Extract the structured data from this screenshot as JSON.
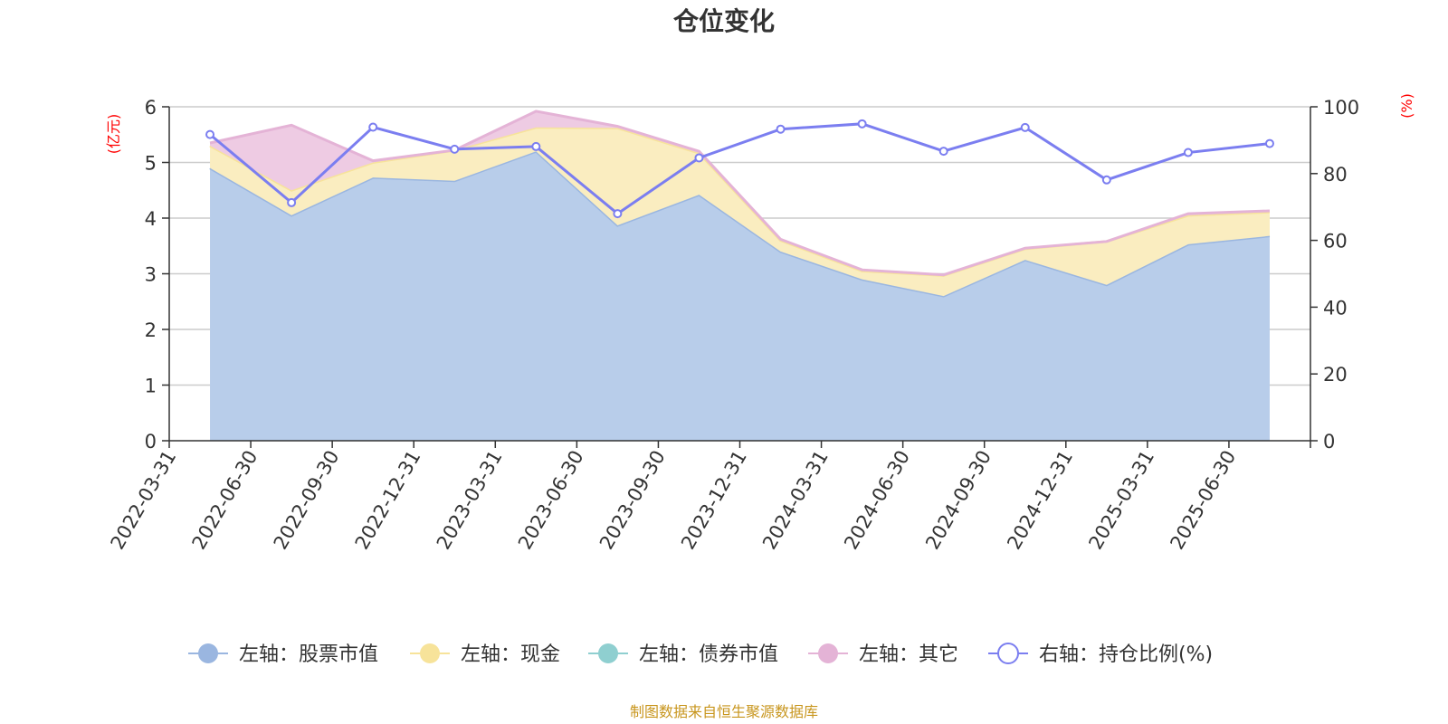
{
  "chart_data": {
    "type": "area",
    "title": "仓位变化",
    "left_axis": {
      "unit": "(亿元)",
      "ylim": [
        0,
        6
      ],
      "ticks": [
        "0",
        "1",
        "2",
        "3",
        "4",
        "5",
        "6"
      ]
    },
    "right_axis": {
      "unit": "(%)",
      "ylim": [
        0,
        100
      ],
      "ticks": [
        "0",
        "20",
        "40",
        "60",
        "80",
        "100"
      ]
    },
    "categories": [
      "2022-03-31",
      "2022-06-30",
      "2022-09-30",
      "2022-12-31",
      "2023-03-31",
      "2023-06-30",
      "2023-09-30",
      "2023-12-31",
      "2024-03-31",
      "2024-06-30",
      "2024-09-30",
      "2024-12-31",
      "2025-03-31",
      "2025-06-30"
    ],
    "series": [
      {
        "name": "左轴：股票市值",
        "axis": "left",
        "kind": "stacked-area",
        "color": "#9ab6e0",
        "fill": "#b8cdea",
        "values": [
          4.9,
          4.05,
          4.73,
          4.67,
          5.2,
          3.87,
          4.42,
          3.4,
          2.9,
          2.6,
          3.25,
          2.8,
          3.53,
          3.68
        ]
      },
      {
        "name": "左轴：现金",
        "axis": "left",
        "kind": "stacked-area",
        "color": "#f7e39a",
        "fill": "#faedc0",
        "values": [
          0.4,
          0.45,
          0.27,
          0.55,
          0.43,
          1.75,
          0.75,
          0.2,
          0.15,
          0.37,
          0.2,
          0.78,
          0.52,
          0.43
        ]
      },
      {
        "name": "左轴：债券市值",
        "axis": "left",
        "kind": "stacked-area",
        "color": "#8fcfd0",
        "fill": "#bfe5e5",
        "values": [
          0,
          0,
          0,
          0,
          0,
          0,
          0,
          0,
          0,
          0,
          0,
          0,
          0,
          0
        ]
      },
      {
        "name": "左轴：其它",
        "axis": "left",
        "kind": "stacked-area",
        "color": "#e4b3d6",
        "fill": "#eecbe3",
        "values": [
          0.05,
          1.17,
          0.03,
          0.0,
          0.29,
          0.03,
          0.03,
          0.02,
          0.02,
          0.01,
          0.01,
          0.0,
          0.03,
          0.02
        ]
      },
      {
        "name": "右轴：持仓比例(%)",
        "axis": "right",
        "kind": "line",
        "color": "#7b7ef0",
        "values": [
          91.7,
          71.3,
          93.9,
          87.3,
          88.1,
          68.0,
          84.7,
          93.3,
          94.9,
          86.7,
          93.8,
          78.1,
          86.3,
          89.0
        ]
      }
    ],
    "grid": true,
    "legend_position": "bottom",
    "source": "制图数据来自恒生聚源数据库"
  }
}
